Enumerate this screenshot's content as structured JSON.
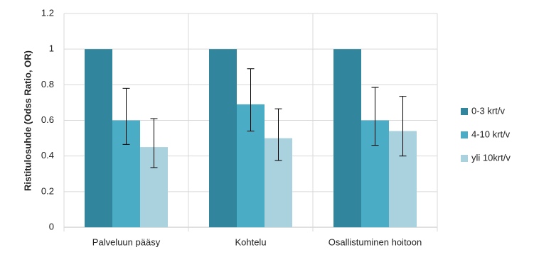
{
  "chart_data": {
    "type": "bar",
    "y_label": "Ristitulosuhde (Odss Ratio, OR)",
    "categories": [
      "Palveluun pääsy",
      "Kohtelu",
      "Osallistuminen hoitoon"
    ],
    "series": [
      {
        "name": "0-3 krt/v",
        "color": "#31859c",
        "values": [
          1,
          1,
          1
        ]
      },
      {
        "name": "4-10 krt/v",
        "color": "#4bacc6",
        "values": [
          0.6,
          0.69,
          0.6
        ],
        "ci_low": [
          0.465,
          0.54,
          0.46
        ],
        "ci_high": [
          0.78,
          0.89,
          0.785
        ]
      },
      {
        "name": "yli 10krt/v",
        "color": "#a9d1de",
        "values": [
          0.45,
          0.5,
          0.54
        ],
        "ci_low": [
          0.335,
          0.375,
          0.4
        ],
        "ci_high": [
          0.61,
          0.665,
          0.735
        ]
      }
    ],
    "ylim": [
      0,
      1.2
    ],
    "yticks": [
      0,
      0.2,
      0.4,
      0.6,
      0.8,
      1,
      1.2
    ],
    "grid": true,
    "legend": "right"
  }
}
